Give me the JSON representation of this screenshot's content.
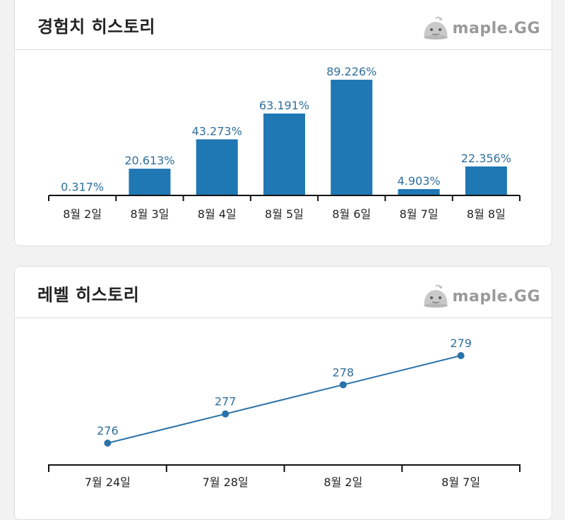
{
  "exp_card": {
    "title": "경험치 히스토리",
    "brand": "maple.GG"
  },
  "level_card": {
    "title": "레벨 히스토리",
    "brand": "maple.GG"
  },
  "colors": {
    "bar": "#1f77b4",
    "line": "#2a72a8",
    "label": "#2f6f9c"
  },
  "chart_data": [
    {
      "type": "bar",
      "title": "경험치 히스토리",
      "categories": [
        "8월 2일",
        "8월 3일",
        "8월 4일",
        "8월 5일",
        "8월 6일",
        "8월 7일",
        "8월 8일"
      ],
      "values": [
        0.317,
        20.613,
        43.273,
        63.191,
        89.226,
        4.903,
        22.356
      ],
      "labels": [
        "0.317%",
        "20.613%",
        "43.273%",
        "63.191%",
        "89.226%",
        "4.903%",
        "22.356%"
      ],
      "ylim": [
        0,
        100
      ],
      "grid": false
    },
    {
      "type": "line",
      "title": "레벨 히스토리",
      "categories": [
        "7월 24일",
        "7월 28일",
        "8월 2일",
        "8월 7일"
      ],
      "values": [
        276,
        277,
        278,
        279
      ],
      "labels": [
        "276",
        "277",
        "278",
        "279"
      ],
      "grid": false
    }
  ]
}
